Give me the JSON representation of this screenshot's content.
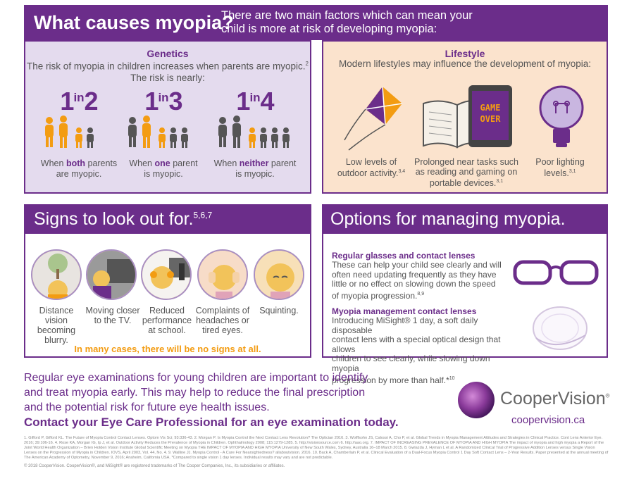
{
  "header": {
    "title": "What causes myopia?",
    "subtitle_line1": "There are two main factors which can mean your",
    "subtitle_line2": "child is more at risk of developing myopia:"
  },
  "genetics": {
    "title": "Genetics",
    "desc_line1": "The risk of myopia in children increases when parents are myopic.",
    "desc_sup": "2",
    "desc_line2": "The risk is nearly:",
    "ratios": [
      {
        "a": "1",
        "in": "in",
        "b": "2",
        "cap_pre": "When ",
        "cap_bold": "both",
        "cap_post": " parents",
        "cap_line2": "are myopic."
      },
      {
        "a": "1",
        "in": "in",
        "b": "3",
        "cap_pre": "When ",
        "cap_bold": "one",
        "cap_post": " parent",
        "cap_line2": "is myopic."
      },
      {
        "a": "1",
        "in": "in",
        "b": "4",
        "cap_pre": "When ",
        "cap_bold": "neither",
        "cap_post": " parent",
        "cap_line2": "is myopic."
      }
    ]
  },
  "lifestyle": {
    "title": "Lifestyle",
    "desc": "Modern lifestyles may influence the development of myopia:",
    "items": [
      {
        "line1": "Low levels of",
        "line2": "outdoor activity.",
        "sup": "3,4",
        "line3": ""
      },
      {
        "line1": "Prolonged near tasks such",
        "line2": "as reading and gaming on",
        "line3": "portable devices.",
        "sup": "3,1"
      },
      {
        "line1": "Poor lighting",
        "line2": "levels.",
        "sup": "3,1",
        "line3": ""
      }
    ],
    "tablet_text_1": "GAME",
    "tablet_text_2": "OVER"
  },
  "signs": {
    "title": "Signs to look out for.",
    "title_sup": "5,6,7",
    "items": [
      {
        "lines": [
          "Distance",
          "vision",
          "becoming",
          "blurry."
        ]
      },
      {
        "lines": [
          "Moving closer",
          "to the TV."
        ]
      },
      {
        "lines": [
          "Reduced",
          "performance",
          "at school."
        ]
      },
      {
        "lines": [
          "Complaints of",
          "headaches or",
          "tired eyes."
        ]
      },
      {
        "lines": [
          "Squinting."
        ]
      }
    ],
    "note": "In many cases, there will be no signs at all."
  },
  "options": {
    "title": "Options for managing myopia.",
    "opt1_title": "Regular glasses and contact lenses",
    "opt1_lines": [
      "These can help your child see clearly and will",
      "often need updating frequently as they have",
      "little or no effect on slowing down the speed",
      "of myopia progression."
    ],
    "opt1_sup": "8,9",
    "opt2_title": "Myopia management contact lenses",
    "opt2_lines": [
      "Introducing MiSight® 1 day, a soft daily disposable",
      "contact lens with a special optical design that allows",
      "children to see clearly, while slowing down myopia",
      "progression by more than half.*"
    ],
    "opt2_sup": "10"
  },
  "bottom": {
    "lines": [
      "Regular eye examinations for young children are important to identify",
      "and treat myopia early. This may help to reduce the final prescription",
      "and the potential risk for future eye health issues."
    ],
    "cta": "Contact your Eye Care Professional for an eye examination today."
  },
  "brand": {
    "name": "CooperVision",
    "reg": "®",
    "url": "coopervision.ca"
  },
  "refs": "1. Gifford P, Gifford KL. The Future of Myopia Control Contact Lenses. Optom Vis Sci; 93:336-43. 2. Morgan P. Is Myopia Control the Next Contact Lens Revolution? The Optician 2016. 3. Wolffsohn JS, Calossi A, Cho P, et al. Global Trends in Myopia Management Attitudes and Strategies in Clinical Practice. Cont Lens Anterior Eye. 2016; 39:106-16. 4. Rose KA, Morgan IG, Ip J, et al. Outdoor Activity Reduces the Prevalence of Myopia in Children. Ophthalmology 2008; 115:1279-1285. 5. http://visionsource.com 6. http://aao.org. 7. IMPACT OF INCREASING PREVALENCE OF MYOPIA AND HIGH MYOPIA The impact of myopia and high myopia a Report of the Joint World Health Organization – Brien Holden Vision Institute Global Scientific Meeting on Myopia THE IMPACT OF MYOPIA AND HIGH MYOPIA University of New South Wales, Sydney, Australia 16–18 March 2015. 8. Gwiazda J, Hyman L et al. A Randomized Clinical Trial of Progressive Addition Lenses versus Single Vision Lenses on the Progression of Myopia in Children. IOVS, April 2003, Vol. 44, No. 4. 9. Walline JJ. Myopia Control - A Cure For Nearsightedness? allaboutvision. 2016. 10. Back A, Chamberlain P, et al. Clinical Evaluation of a Dual-Focus Myopia Control 1 Day Soft Contact Lens – 2-Year Results. Paper presented at the annual meeting of The American Academy of Optometry, November 9, 2016; Anaheim, California USA. *Compared to single vision 1 day lenses. Individual results may vary and are not predictable.",
  "copyright": "© 2018 CooperVision. CooperVision®, and MiSight® are registered trademarks of The Cooper Companies, Inc., its subsidiaries or affiliates.",
  "colors": {
    "purple": "#6b2d8a",
    "orange": "#f39c12",
    "lavender": "#e4dbee",
    "peach": "#fbe3cd"
  }
}
